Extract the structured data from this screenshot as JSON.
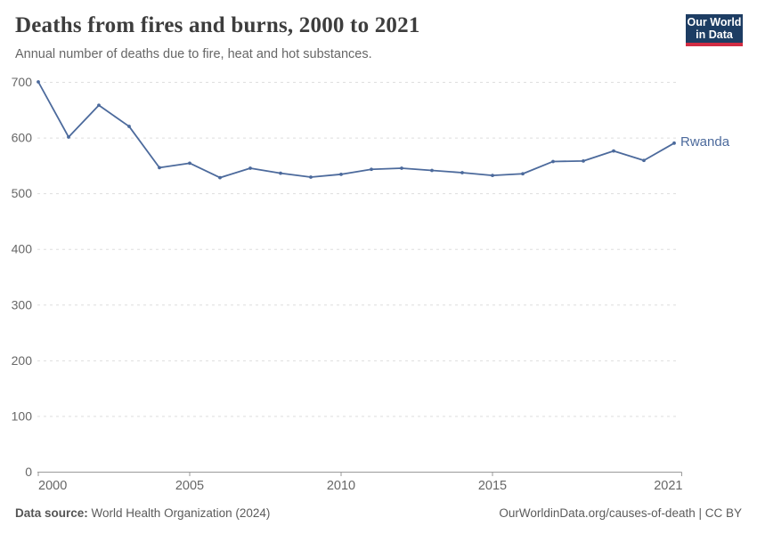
{
  "header": {
    "title": "Deaths from fires and burns, 2000 to 2021",
    "subtitle": "Annual number of deaths due to fire, heat and hot substances.",
    "logo": {
      "line1": "Our World",
      "line2": "in Data",
      "bg_color": "#1d3d63",
      "accent_color": "#d12d43"
    }
  },
  "chart_data": {
    "type": "line",
    "title": "Deaths from fires and burns, 2000 to 2021",
    "xlabel": "",
    "ylabel": "",
    "x": [
      2000,
      2001,
      2002,
      2003,
      2004,
      2005,
      2006,
      2007,
      2008,
      2009,
      2010,
      2011,
      2012,
      2013,
      2014,
      2015,
      2016,
      2017,
      2018,
      2019,
      2020,
      2021
    ],
    "series": [
      {
        "name": "Rwanda",
        "color": "#4c6a9c",
        "values": [
          700,
          601,
          658,
          620,
          546,
          554,
          528,
          545,
          536,
          529,
          534,
          543,
          545,
          541,
          537,
          532,
          535,
          557,
          558,
          576,
          559,
          590
        ]
      }
    ],
    "x_ticks": [
      2000,
      2005,
      2010,
      2015,
      2021
    ],
    "y_ticks": [
      0,
      100,
      200,
      300,
      400,
      500,
      600,
      700
    ],
    "ylim": [
      0,
      700
    ],
    "xlim": [
      2000,
      2021
    ],
    "grid": "horizontal-dashed",
    "grid_color": "#dedede",
    "axis_color": "#9a9a9a",
    "tick_label_color": "#676767",
    "legend_position": "end-of-line"
  },
  "footer": {
    "datasource_label": "Data source:",
    "datasource_value": " World Health Organization (2024)",
    "attribution_url": "OurWorldinData.org/causes-of-death",
    "attribution_separator": " | ",
    "attribution_license": "CC BY"
  }
}
